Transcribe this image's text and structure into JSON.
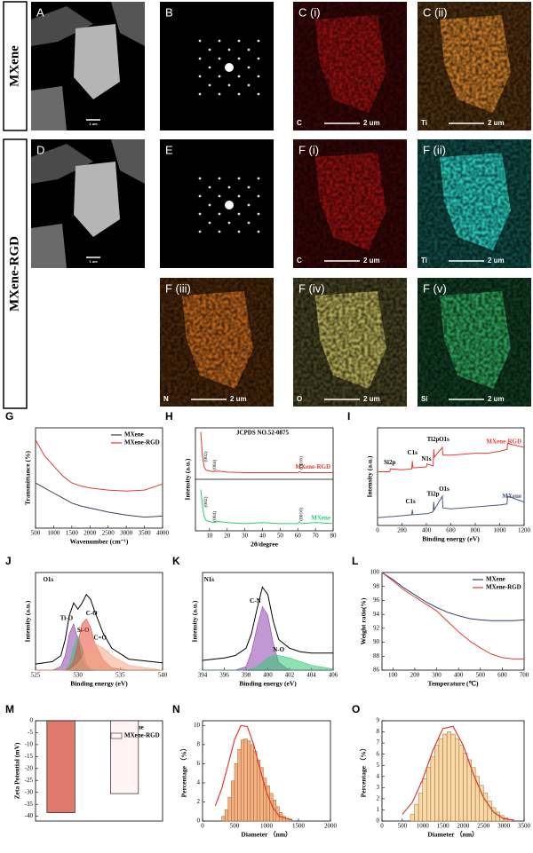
{
  "groups": [
    {
      "label": "MXene"
    },
    {
      "label": "MXene-RGD"
    }
  ],
  "images": [
    {
      "label": "A",
      "scale": "1 um"
    },
    {
      "label": "B"
    },
    {
      "label": "C (i)",
      "element": "C",
      "scale": "2 um"
    },
    {
      "label": "C (ii)",
      "element": "Ti",
      "scale": "2 um"
    },
    {
      "label": "D",
      "scale": "1 um"
    },
    {
      "label": "E"
    },
    {
      "label": "F (i)",
      "element": "C",
      "scale": "2 um"
    },
    {
      "label": "F (ii)",
      "element": "Ti",
      "scale": "2 um"
    },
    {
      "label": "F (iii)",
      "element": "N",
      "scale": "2 um"
    },
    {
      "label": "F (iv)",
      "element": "O",
      "scale": "2 um"
    },
    {
      "label": "F (v)",
      "element": "Si",
      "scale": "2 um"
    }
  ],
  "chart_data": [
    {
      "type": "line",
      "label": "G",
      "x_label": "Wavenumber (cm⁻¹)",
      "y_label": "Transmittance (%)",
      "x": [
        500,
        750,
        1000,
        1250,
        1500,
        1750,
        2000,
        2500,
        3000,
        3500,
        4000
      ],
      "xlim": [
        500,
        4000
      ],
      "xticks": [
        500,
        1000,
        1500,
        2000,
        2500,
        3000,
        3500,
        4000
      ],
      "ylim": [
        0,
        100
      ],
      "legend": "upper right",
      "series": [
        {
          "name": "MXene",
          "color": "#3d3d5c",
          "values": [
            45,
            40,
            35,
            30,
            25,
            22,
            20,
            16,
            13,
            11,
            12
          ]
        },
        {
          "name": "MXene-RGD",
          "color": "#e03c31",
          "values": [
            88,
            72,
            62,
            52,
            45,
            42,
            40,
            38,
            37,
            38,
            44
          ]
        }
      ]
    },
    {
      "type": "line",
      "label": "H",
      "x_label": "2θ/degree",
      "y_label": "Intensity (a.u.)",
      "x": [
        5,
        6,
        7,
        8,
        10,
        12,
        15,
        20,
        30,
        40,
        50,
        60,
        61,
        62,
        70,
        80
      ],
      "xlim": [
        2,
        80
      ],
      "xticks": [
        10,
        20,
        30,
        40,
        50,
        60,
        70,
        80
      ],
      "ylim": [
        0,
        100
      ],
      "legend": "beside",
      "annotations": [
        "JCPDS NO.52-0875",
        "(002)",
        "(004)",
        "(0016)",
        "(002)",
        "(004)",
        "(0016)"
      ],
      "series": [
        {
          "name": "MXene-RGD",
          "color": "#e03c31",
          "values": [
            96,
            72,
            62,
            59,
            58,
            57.5,
            58,
            57,
            56.5,
            56.5,
            56.5,
            56.5,
            57.5,
            56.5,
            56.5,
            56.5
          ]
        },
        {
          "name": "MXene",
          "color": "#2ecc71",
          "values": [
            40,
            24,
            14,
            10,
            9,
            8,
            9,
            8,
            7,
            8,
            7,
            7,
            9,
            7,
            8,
            7
          ]
        }
      ]
    },
    {
      "type": "line",
      "label": "I",
      "x_label": "Binding energy (eV)",
      "y_label": "Intensity (a.u.)",
      "x": [
        0,
        100,
        105,
        200,
        280,
        285,
        290,
        400,
        405,
        455,
        460,
        465,
        530,
        535,
        600,
        700,
        800,
        900,
        1000,
        1060,
        1065,
        1200
      ],
      "xlim": [
        0,
        1200
      ],
      "xticks": [
        0,
        200,
        400,
        600,
        800,
        1000,
        1200
      ],
      "ylim": [
        0,
        100
      ],
      "legend": "beside",
      "annotations": [
        "C1s",
        "Si2p",
        "N1s",
        "Ti2p",
        "O1s",
        "C1s",
        "Ti2p",
        "O1s"
      ],
      "series": [
        {
          "name": "MXene-RGD",
          "color": "#e03c31",
          "values": [
            55,
            55,
            58,
            57,
            58,
            66,
            59,
            60,
            63,
            61,
            78,
            70,
            80,
            72,
            72,
            73,
            74,
            74,
            76,
            78,
            84,
            80
          ]
        },
        {
          "name": "MXene",
          "color": "#4a5a7a",
          "values": [
            8,
            9,
            9,
            10,
            11,
            16,
            11,
            12,
            12,
            14,
            24,
            16,
            30,
            18,
            17,
            18,
            19,
            20,
            21,
            22,
            30,
            24
          ]
        }
      ]
    },
    {
      "type": "line",
      "label": "J",
      "x_label": "Binding energy (eV)",
      "y_label": "Intensity (a.u.)",
      "x": [
        525,
        527,
        528,
        528.5,
        529,
        529.5,
        530,
        530.5,
        531,
        531.5,
        532,
        533,
        534,
        536,
        540
      ],
      "xlim": [
        525,
        540
      ],
      "xticks": [
        525,
        530,
        535,
        540
      ],
      "ylim": [
        0,
        80
      ],
      "legend": "peaks",
      "annotations": [
        "O1s"
      ],
      "series": [
        {
          "name": "Ti-O",
          "color": "#8e44ad",
          "fill": true,
          "values": [
            0,
            0,
            3,
            12,
            30,
            38,
            25,
            8,
            2,
            0,
            0,
            0,
            0,
            0,
            0
          ]
        },
        {
          "name": "Si-O",
          "color": "#2ecc71",
          "fill": true,
          "values": [
            0,
            0,
            0,
            0,
            5,
            18,
            28,
            18,
            5,
            1,
            0,
            0,
            0,
            0,
            0
          ]
        },
        {
          "name": "C-O",
          "color": "#e74c3c",
          "fill": true,
          "values": [
            0,
            0,
            0,
            0,
            2,
            8,
            22,
            38,
            42,
            35,
            22,
            8,
            2,
            0,
            0
          ]
        },
        {
          "name": "C=O",
          "color": "#f4a582",
          "fill": true,
          "values": [
            0,
            0,
            0,
            0,
            0,
            2,
            5,
            10,
            16,
            20,
            22,
            18,
            12,
            4,
            0
          ]
        },
        {
          "color": "#000000",
          "values": [
            5,
            7,
            12,
            25,
            45,
            55,
            50,
            55,
            62,
            58,
            48,
            30,
            18,
            9,
            6
          ]
        }
      ]
    },
    {
      "type": "line",
      "label": "K",
      "x_label": "Binding energy (eV)",
      "y_label": "Intensity (a.u.)",
      "x": [
        394,
        396,
        397,
        398,
        398.5,
        399,
        399.5,
        400,
        400.5,
        401,
        402,
        403,
        404,
        406
      ],
      "xlim": [
        394,
        406
      ],
      "xticks": [
        394,
        396,
        398,
        400,
        402,
        404,
        406
      ],
      "ylim": [
        0,
        80
      ],
      "legend": "peaks",
      "annotations": [
        "N1s"
      ],
      "series": [
        {
          "name": "C-N",
          "color": "#8e44ad",
          "fill": true,
          "values": [
            0,
            0,
            0,
            3,
            15,
            35,
            52,
            45,
            22,
            6,
            0,
            0,
            0,
            0
          ]
        },
        {
          "name": "N-O",
          "color": "#2ecc71",
          "fill": true,
          "values": [
            0,
            0,
            0,
            0,
            1,
            3,
            6,
            10,
            12,
            12,
            10,
            7,
            4,
            1
          ]
        },
        {
          "color": "#000000",
          "values": [
            8,
            10,
            12,
            18,
            30,
            50,
            68,
            62,
            40,
            25,
            18,
            15,
            14,
            14
          ]
        }
      ]
    },
    {
      "type": "line",
      "label": "L",
      "x_label": "Temperature (℃)",
      "y_label": "Weight ratio(%)",
      "x": [
        50,
        100,
        150,
        200,
        250,
        300,
        350,
        400,
        450,
        500,
        550,
        600,
        650,
        700
      ],
      "xlim": [
        50,
        700
      ],
      "xticks": [
        100,
        200,
        300,
        400,
        500,
        600,
        700
      ],
      "ylim": [
        86,
        100
      ],
      "yticks": [
        86,
        88,
        90,
        92,
        94,
        96,
        98,
        100
      ],
      "legend": "upper right",
      "series": [
        {
          "name": "MXene",
          "color": "#2c3e6b",
          "values": [
            100,
            99,
            97.8,
            96.8,
            95.8,
            95,
            94.3,
            93.8,
            93.4,
            93.2,
            93.1,
            93.1,
            93.1,
            93.2
          ]
        },
        {
          "name": "MXene-RGD",
          "color": "#e03c31",
          "values": [
            100,
            98.8,
            97.5,
            96.5,
            95.5,
            94.5,
            93,
            91.5,
            90.2,
            89.2,
            88.3,
            87.8,
            87.6,
            87.6
          ]
        }
      ]
    },
    {
      "type": "bar",
      "label": "M",
      "y_label": "Zeta Potential (mV)",
      "categories": [
        null
      ],
      "ylim": [
        -42,
        0
      ],
      "yticks": [
        0,
        -5,
        -10,
        -15,
        -20,
        -25,
        -30,
        -35,
        -40
      ],
      "legend": "upper right",
      "series": [
        {
          "name": "MXene",
          "color": "#e07a6f",
          "values": [
            -38.5
          ]
        },
        {
          "name": "MXene-RGD",
          "color": "#fff3f3",
          "values": [
            -30.5
          ]
        }
      ]
    },
    {
      "type": "histogram",
      "label": "N",
      "x_label": "Diameter （nm）",
      "y_label": "Percentage （%）",
      "bins": [
        300,
        350,
        400,
        450,
        500,
        550,
        600,
        650,
        700,
        750,
        800,
        850,
        900,
        950,
        1000,
        1050,
        1100,
        1150,
        1200,
        1250,
        1300,
        1350,
        1400
      ],
      "values": [
        0.5,
        1.2,
        2.5,
        4.2,
        6,
        7.5,
        8.5,
        8.6,
        8.4,
        8,
        7.3,
        6.4,
        5.6,
        4.5,
        3.7,
        2.9,
        2.2,
        1.5,
        0.9,
        0.5,
        0.3,
        0.2
      ],
      "color": "#f4b183",
      "xlim": [
        0,
        2000
      ],
      "xticks": [
        0,
        500,
        1000,
        1500,
        2000
      ],
      "ylim": [
        0,
        10.5
      ],
      "yticks": [
        0,
        2,
        4,
        6,
        8,
        10
      ],
      "fit_x": [
        200,
        300,
        400,
        500,
        600,
        700,
        800,
        900,
        1000,
        1100,
        1200,
        1400
      ],
      "fit_values": [
        1.6,
        3.4,
        5.9,
        8.5,
        10,
        9.9,
        8,
        5.4,
        3,
        1.4,
        0.5,
        0.1
      ],
      "fit_color": "#e03c31"
    },
    {
      "type": "histogram",
      "label": "O",
      "x_label": "Diameter （nm）",
      "y_label": "Percentage （%）",
      "bins": [
        700,
        800,
        900,
        1000,
        1100,
        1200,
        1300,
        1400,
        1500,
        1600,
        1700,
        1800,
        1900,
        2000,
        2100,
        2200,
        2300,
        2400,
        2500,
        2600,
        2700,
        2800,
        2900,
        3000,
        3100,
        3200
      ],
      "values": [
        0.6,
        1.5,
        2.5,
        3.8,
        4.8,
        5.8,
        6.8,
        7.4,
        7.8,
        8,
        7.8,
        7.4,
        6.8,
        6.1,
        5.5,
        4.8,
        4,
        3.2,
        2.5,
        1.8,
        1.2,
        0.8,
        0.5,
        0.3,
        0.1
      ],
      "color": "#f8d9a8",
      "xlim": [
        0,
        3500
      ],
      "xticks": [
        0,
        500,
        1000,
        1500,
        2000,
        2500,
        3000,
        3500
      ],
      "ylim": [
        0,
        9
      ],
      "yticks": [
        0,
        1,
        2,
        3,
        4,
        5,
        6,
        7,
        8,
        9
      ],
      "fit_x": [
        500,
        750,
        1000,
        1250,
        1500,
        1750,
        2000,
        2250,
        2500,
        2750,
        3000,
        3250
      ],
      "fit_values": [
        0.6,
        1.7,
        3.7,
        6.3,
        8.3,
        8.5,
        6.8,
        4.2,
        2.1,
        0.8,
        0.2,
        0.1
      ],
      "fit_color": "#e03c31"
    }
  ]
}
